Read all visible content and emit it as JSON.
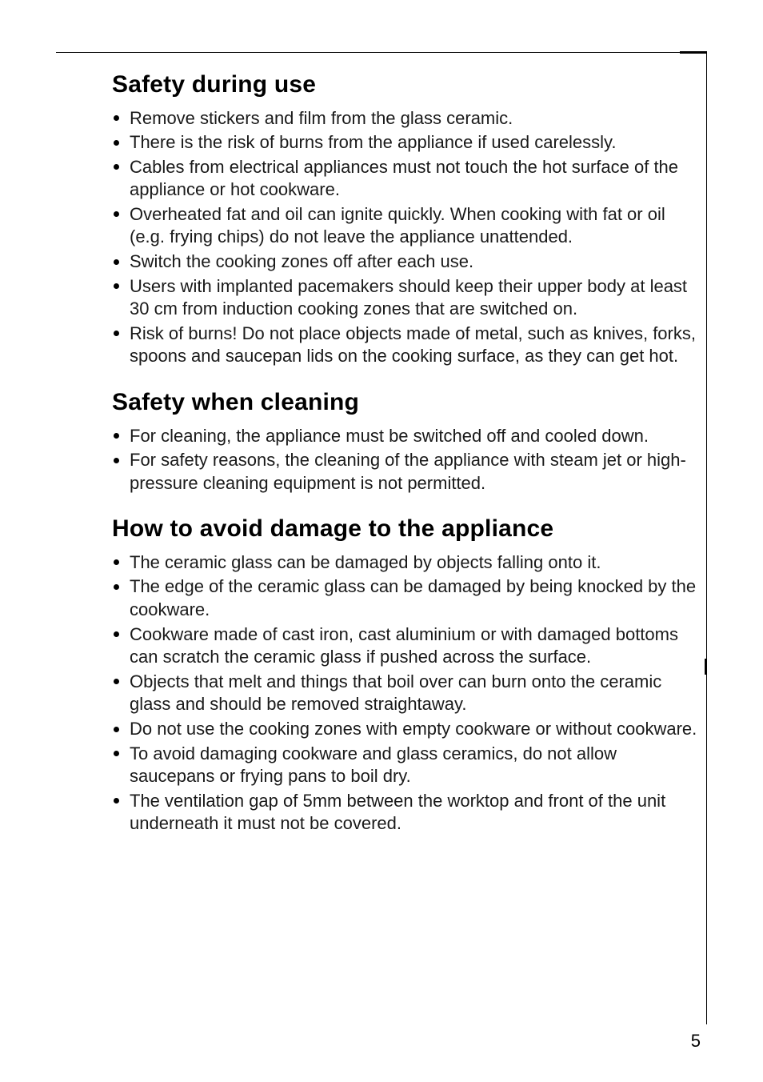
{
  "page": {
    "number": "5",
    "text_color": "#000000",
    "background": "#ffffff",
    "heading_fontsize": 30,
    "body_fontsize": 22
  },
  "sections": [
    {
      "key": "use",
      "title": "Safety during use",
      "items": [
        "Remove stickers and film from the glass ceramic.",
        "There is the risk of burns from the appliance if used carelessly.",
        "Cables from electrical appliances must not touch the hot surface of the appliance or hot cookware.",
        "Overheated fat and oil can ignite quickly. When cooking with fat or oil (e.g. frying chips) do not leave the appliance unattended.",
        "Switch the cooking zones off after each use.",
        "Users with implanted pacemakers should keep their upper body at least 30 cm from induction cooking zones that are switched on.",
        "Risk of burns! Do not place objects made of metal, such as knives, forks, spoons and saucepan lids on the cooking surface, as they can get hot."
      ]
    },
    {
      "key": "clean",
      "title": "Safety when cleaning",
      "items": [
        "For cleaning, the appliance must be switched off and cooled down.",
        "For safety reasons, the cleaning of the appliance with steam jet or high-pressure cleaning equipment is not permitted."
      ]
    },
    {
      "key": "damage",
      "title": "How to avoid damage to the appliance",
      "items": [
        "The ceramic glass can be damaged by objects falling onto it.",
        "The edge of the ceramic glass can be damaged by being knocked by the cookware.",
        "Cookware made of cast iron, cast aluminium or with damaged bottoms can scratch the ceramic glass if pushed across the surface.",
        "Objects that melt and things that boil over can burn onto the ceramic glass and should be removed straightaway.",
        "Do not use the cooking zones with empty cookware or without cookware.",
        "To avoid damaging cookware and glass ceramics, do not allow saucepans or frying pans to boil dry.",
        "The ventilation gap of 5mm between the worktop and front of the unit underneath it must not be covered."
      ]
    }
  ]
}
